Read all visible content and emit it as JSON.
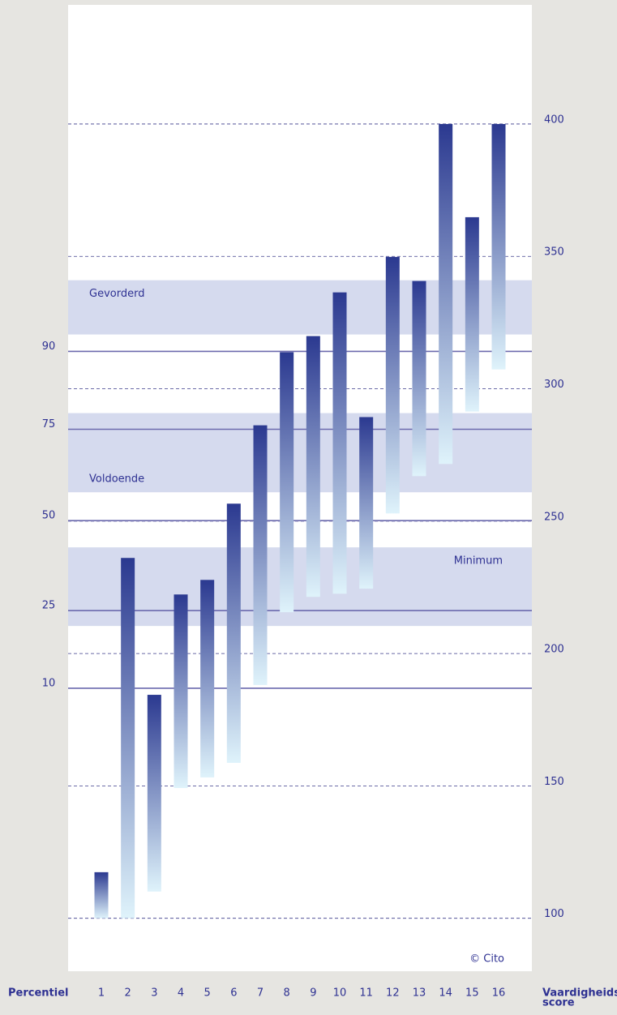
{
  "chart_data": {
    "type": "range_bar",
    "categories": [
      "1",
      "2",
      "3",
      "4",
      "5",
      "6",
      "7",
      "8",
      "9",
      "10",
      "11",
      "12",
      "13",
      "14",
      "15",
      "16"
    ],
    "low": [
      100,
      100,
      110.1,
      149.2,
      153.2,
      158.7,
      188.1,
      215.6,
      221.4,
      222.6,
      224.5,
      252.9,
      267.0,
      271.6,
      291.4,
      307.3
    ],
    "high": [
      117.4,
      236.1,
      184.4,
      222.3,
      227.8,
      256.6,
      286.2,
      313.8,
      319.9,
      336.4,
      289.3,
      349.8,
      340.7,
      400,
      364.8,
      400
    ],
    "color_top": "#2b3990",
    "color_bottom": "#dff3fb",
    "ylim": [
      80,
      445
    ],
    "yticks": [
      100,
      150,
      200,
      250,
      300,
      350,
      400
    ],
    "y_axis_label": [
      "Vaardigheids-",
      "score"
    ],
    "x_axis_label": "Percentiel",
    "percentile_ticks": [
      {
        "value": 314.1,
        "label": "90"
      },
      {
        "value": 284.7,
        "label": "75"
      },
      {
        "value": 250.2,
        "label": "50"
      },
      {
        "value": 216.2,
        "label": "25"
      },
      {
        "value": 186.9,
        "label": "10"
      }
    ],
    "bands": [
      {
        "name": "Gevorderd",
        "low": 320.5,
        "high": 341.0
      },
      {
        "name": "Voldoende",
        "low": 260.9,
        "high": 290.8
      },
      {
        "name": "Minimum",
        "low": 210.4,
        "high": 240.1
      }
    ],
    "band_color": "#d5daee",
    "copyright": "© Cito"
  }
}
